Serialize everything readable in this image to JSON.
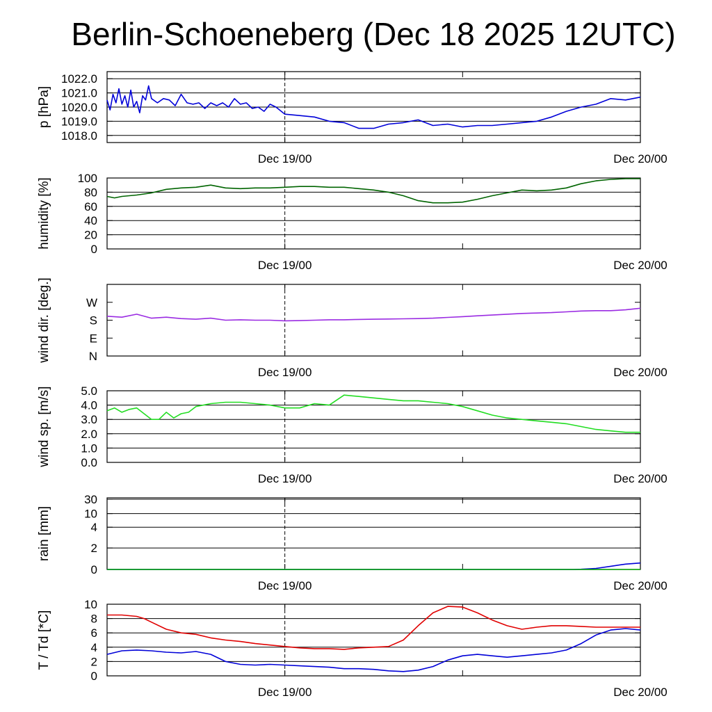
{
  "title": "Berlin-Schoeneberg (Dec 18 2025 12UTC)",
  "chart_data": [
    {
      "type": "line",
      "ylabel": "p [hPa]",
      "xlabel": "",
      "x_tick_labels": [
        "Dec 19/00",
        "Dec 20/00"
      ],
      "x_range_hours": [
        0,
        36
      ],
      "x_ticks_hours": [
        12,
        24,
        36
      ],
      "marker_hour": 12,
      "ylim": [
        1017.5,
        1022.5
      ],
      "yticks": [
        1018.0,
        1019.0,
        1020.0,
        1021.0,
        1022.0
      ],
      "ytick_labels": [
        "1018.0",
        "1019.0",
        "1020.0",
        "1021.0",
        "1022.0"
      ],
      "grid": true,
      "series": [
        {
          "name": "p",
          "color": "#0000d8",
          "x": [
            0,
            0.2,
            0.4,
            0.6,
            0.8,
            1.0,
            1.2,
            1.4,
            1.6,
            1.8,
            2.0,
            2.2,
            2.4,
            2.6,
            2.8,
            3.0,
            3.4,
            3.8,
            4.2,
            4.6,
            5.0,
            5.4,
            5.8,
            6.2,
            6.6,
            7.0,
            7.4,
            7.8,
            8.2,
            8.6,
            9.0,
            9.4,
            9.8,
            10.2,
            10.6,
            11.0,
            11.4,
            12.0,
            13,
            14,
            15,
            16,
            17,
            18,
            19,
            20,
            21,
            22,
            23,
            24,
            25,
            26,
            27,
            28,
            29,
            30,
            31,
            32,
            33,
            34,
            35,
            36
          ],
          "values": [
            1020.5,
            1019.8,
            1020.9,
            1020.3,
            1021.3,
            1020.2,
            1020.8,
            1020.0,
            1021.2,
            1020.0,
            1020.4,
            1019.6,
            1020.8,
            1020.5,
            1021.5,
            1020.6,
            1020.3,
            1020.6,
            1020.5,
            1020.1,
            1020.9,
            1020.3,
            1020.2,
            1020.3,
            1019.9,
            1020.3,
            1020.1,
            1020.3,
            1020.0,
            1020.6,
            1020.2,
            1020.3,
            1019.9,
            1020.0,
            1019.7,
            1020.2,
            1020.0,
            1019.5,
            1019.4,
            1019.3,
            1019.0,
            1018.9,
            1018.5,
            1018.5,
            1018.8,
            1018.9,
            1019.1,
            1018.7,
            1018.8,
            1018.6,
            1018.7,
            1018.7,
            1018.8,
            1018.9,
            1019.0,
            1019.3,
            1019.7,
            1020.0,
            1020.2,
            1020.6,
            1020.5,
            1020.7
          ]
        }
      ]
    },
    {
      "type": "line",
      "ylabel": "humidity [%]",
      "xlabel": "",
      "x_tick_labels": [
        "Dec 19/00",
        "Dec 20/00"
      ],
      "x_range_hours": [
        0,
        36
      ],
      "x_ticks_hours": [
        12,
        24,
        36
      ],
      "marker_hour": 12,
      "ylim": [
        0,
        100
      ],
      "yticks": [
        0,
        20,
        40,
        60,
        80,
        100
      ],
      "ytick_labels": [
        "0",
        "20",
        "40",
        "60",
        "80",
        "100"
      ],
      "grid": true,
      "series": [
        {
          "name": "humidity",
          "color": "#006400",
          "x": [
            0,
            0.5,
            1,
            2,
            3,
            4,
            5,
            6,
            7,
            8,
            9,
            10,
            11,
            12,
            13,
            14,
            15,
            16,
            17,
            18,
            19,
            20,
            21,
            22,
            23,
            24,
            25,
            26,
            27,
            28,
            29,
            30,
            31,
            32,
            33,
            34,
            35,
            36
          ],
          "values": [
            74,
            72,
            74,
            76,
            79,
            84,
            86,
            87,
            90,
            86,
            85,
            86,
            86,
            87,
            88,
            88,
            87,
            87,
            85,
            83,
            80,
            75,
            68,
            65,
            65,
            66,
            70,
            75,
            79,
            83,
            82,
            83,
            86,
            92,
            96,
            98,
            99,
            99
          ]
        }
      ]
    },
    {
      "type": "line",
      "ylabel": "wind dir. [deg.]",
      "xlabel": "",
      "x_tick_labels": [
        "Dec 19/00",
        "Dec 20/00"
      ],
      "x_range_hours": [
        0,
        36
      ],
      "x_ticks_hours": [
        12,
        24,
        36
      ],
      "marker_hour": 12,
      "ylim": [
        0,
        360
      ],
      "yticks": [
        0,
        90,
        180,
        270
      ],
      "ytick_labels": [
        "N",
        "E",
        "S",
        "W"
      ],
      "grid": false,
      "series": [
        {
          "name": "wind direction",
          "color": "#9a2be2",
          "x": [
            0,
            1,
            2,
            3,
            4,
            5,
            6,
            7,
            8,
            9,
            10,
            11,
            12,
            13,
            14,
            15,
            16,
            17,
            18,
            19,
            20,
            21,
            22,
            23,
            24,
            25,
            26,
            27,
            28,
            29,
            30,
            31,
            32,
            33,
            34,
            35,
            36
          ],
          "values": [
            200,
            195,
            210,
            190,
            195,
            188,
            185,
            190,
            180,
            182,
            180,
            180,
            177,
            178,
            180,
            182,
            182,
            184,
            185,
            186,
            187,
            188,
            190,
            194,
            198,
            202,
            206,
            210,
            214,
            216,
            218,
            222,
            226,
            228,
            228,
            232,
            240
          ]
        }
      ]
    },
    {
      "type": "line",
      "ylabel": "wind sp. [m/s]",
      "xlabel": "",
      "x_tick_labels": [
        "Dec 19/00",
        "Dec 20/00"
      ],
      "x_range_hours": [
        0,
        36
      ],
      "x_ticks_hours": [
        12,
        24,
        36
      ],
      "marker_hour": 12,
      "ylim": [
        0,
        5
      ],
      "yticks": [
        0.0,
        1.0,
        2.0,
        3.0,
        4.0,
        5.0
      ],
      "ytick_labels": [
        "0.0",
        "1.0",
        "2.0",
        "3.0",
        "4.0",
        "5.0"
      ],
      "grid": true,
      "series": [
        {
          "name": "wind speed",
          "color": "#22dd22",
          "x": [
            0,
            0.5,
            1,
            1.5,
            2,
            3,
            3.5,
            4,
            4.5,
            5,
            5.5,
            6,
            7,
            8,
            9,
            10,
            11,
            12,
            13,
            14,
            15,
            16,
            17,
            18,
            19,
            20,
            21,
            22,
            23,
            24,
            25,
            26,
            27,
            28,
            29,
            30,
            31,
            32,
            33,
            34,
            35,
            36
          ],
          "values": [
            3.6,
            3.8,
            3.5,
            3.7,
            3.8,
            3.0,
            3.0,
            3.5,
            3.1,
            3.4,
            3.5,
            3.9,
            4.1,
            4.2,
            4.2,
            4.1,
            4.0,
            3.8,
            3.8,
            4.1,
            4.0,
            4.7,
            4.6,
            4.5,
            4.4,
            4.3,
            4.3,
            4.2,
            4.1,
            3.9,
            3.6,
            3.3,
            3.1,
            3.0,
            2.9,
            2.8,
            2.7,
            2.5,
            2.3,
            2.2,
            2.1,
            2.1
          ]
        }
      ]
    },
    {
      "type": "line",
      "ylabel": "rain [mm]",
      "xlabel": "",
      "x_tick_labels": [
        "Dec 19/00",
        "Dec 20/00"
      ],
      "x_range_hours": [
        0,
        36
      ],
      "x_ticks_hours": [
        12,
        24,
        36
      ],
      "marker_hour": 12,
      "yscale": "nonlinear (sqrt-like)",
      "yticks": [
        0,
        2,
        4,
        10,
        30
      ],
      "ytick_labels": [
        "0",
        "2",
        "4",
        "10",
        "30"
      ],
      "grid": true,
      "series": [
        {
          "name": "rain accumulation",
          "color": "#0000d8",
          "x": [
            0,
            31.5,
            32,
            33,
            34,
            35,
            36
          ],
          "values": [
            0,
            0,
            0.02,
            0.1,
            0.3,
            0.5,
            0.6
          ]
        },
        {
          "name": "rain rate",
          "color": "#00aa00",
          "x": [
            0,
            36
          ],
          "values": [
            0,
            0
          ]
        }
      ]
    },
    {
      "type": "line",
      "ylabel": "T / Td [*C]",
      "xlabel": "",
      "x_tick_labels": [
        "Dec 19/00",
        "Dec 20/00"
      ],
      "x_range_hours": [
        0,
        36
      ],
      "x_ticks_hours": [
        12,
        24,
        36
      ],
      "marker_hour": 12,
      "ylim": [
        0,
        10
      ],
      "yticks": [
        0,
        2,
        4,
        6,
        8,
        10
      ],
      "ytick_labels": [
        "0",
        "2",
        "4",
        "6",
        "8",
        "10"
      ],
      "grid": true,
      "series": [
        {
          "name": "T",
          "color": "#e00000",
          "x": [
            0,
            1,
            2,
            2.5,
            3,
            4,
            5,
            6,
            7,
            8,
            9,
            10,
            11,
            12,
            13,
            14,
            15,
            16,
            17,
            18,
            19,
            20,
            21,
            22,
            23,
            24,
            25,
            26,
            27,
            28,
            29,
            30,
            31,
            32,
            33,
            34,
            35,
            36
          ],
          "values": [
            8.5,
            8.5,
            8.3,
            8.0,
            7.5,
            6.5,
            6.0,
            5.8,
            5.3,
            5.0,
            4.8,
            4.5,
            4.3,
            4.1,
            3.9,
            3.8,
            3.8,
            3.7,
            3.9,
            4.0,
            4.1,
            5.0,
            7.0,
            8.8,
            9.7,
            9.6,
            8.8,
            7.8,
            7.0,
            6.5,
            6.8,
            7.0,
            7.0,
            6.9,
            6.8,
            6.8,
            6.8,
            6.8
          ]
        },
        {
          "name": "Td",
          "color": "#0000d8",
          "x": [
            0,
            1,
            2,
            3,
            4,
            5,
            6,
            7,
            8,
            9,
            10,
            11,
            12,
            13,
            14,
            15,
            16,
            17,
            18,
            19,
            20,
            21,
            22,
            23,
            24,
            25,
            26,
            27,
            28,
            29,
            30,
            31,
            32,
            33,
            34,
            35,
            36
          ],
          "values": [
            3.0,
            3.5,
            3.6,
            3.5,
            3.3,
            3.2,
            3.4,
            3.0,
            2.0,
            1.6,
            1.5,
            1.6,
            1.5,
            1.4,
            1.3,
            1.2,
            1.0,
            1.0,
            0.9,
            0.7,
            0.6,
            0.8,
            1.3,
            2.2,
            2.8,
            3.0,
            2.8,
            2.6,
            2.8,
            3.0,
            3.2,
            3.6,
            4.5,
            5.7,
            6.4,
            6.6,
            6.4
          ]
        }
      ]
    }
  ]
}
